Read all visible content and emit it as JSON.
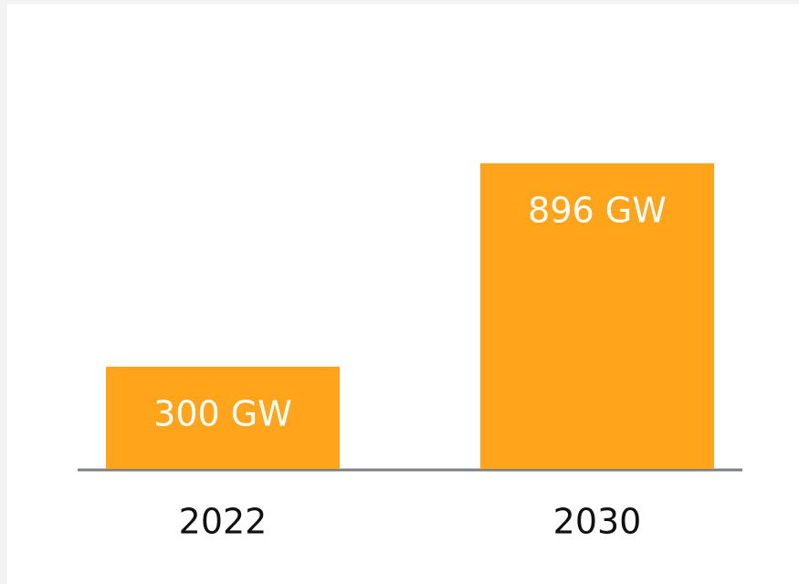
{
  "chart_data": {
    "type": "bar",
    "categories": [
      "2022",
      "2030"
    ],
    "values": [
      300,
      896
    ],
    "value_labels": [
      "300 GW",
      "896 GW"
    ],
    "color": "#ffa41b"
  }
}
